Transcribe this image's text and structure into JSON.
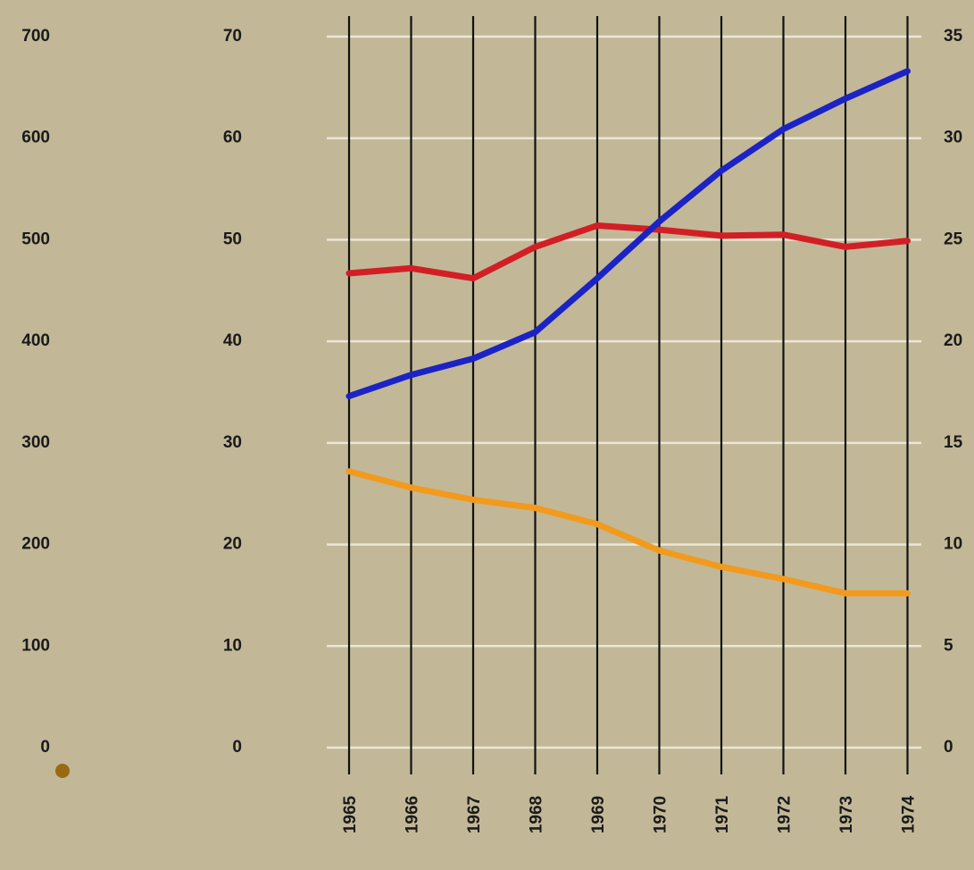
{
  "chart_data": {
    "type": "line",
    "title": "",
    "x": [
      "1965",
      "1966",
      "1967",
      "1968",
      "1969",
      "1970",
      "1971",
      "1972",
      "1973",
      "1974"
    ],
    "axes": {
      "outer_left": {
        "ticks": [
          "0",
          "100",
          "200",
          "300",
          "400",
          "500",
          "600",
          "700"
        ],
        "range": [
          0,
          700
        ]
      },
      "inner_left": {
        "ticks": [
          "0",
          "10",
          "20",
          "30",
          "40",
          "50",
          "60",
          "70"
        ],
        "range": [
          0,
          70
        ]
      },
      "right": {
        "ticks": [
          "0",
          "5",
          "10",
          "15",
          "20",
          "25",
          "30",
          "35"
        ],
        "range": [
          0,
          35
        ]
      }
    },
    "grid": true,
    "series": [
      {
        "color": "#d21f26",
        "axis": "inner_left",
        "values": [
          46.7,
          47.2,
          46.2,
          49.3,
          51.4,
          51.0,
          50.4,
          50.5,
          49.3,
          49.9
        ]
      },
      {
        "color": "#1c23c4",
        "axis": "inner_left",
        "values": [
          34.6,
          36.7,
          38.3,
          40.9,
          46.2,
          51.8,
          56.8,
          60.9,
          63.9,
          66.6
        ]
      },
      {
        "color": "#f29a1e",
        "axis": "right",
        "values": [
          13.6,
          12.8,
          12.2,
          11.8,
          11.0,
          9.7,
          8.9,
          8.3,
          7.6,
          7.6
        ]
      }
    ]
  },
  "colors": {
    "background": "#c2b897",
    "gridline": "#ece6d6",
    "year_line": "#111111",
    "dot": "#9a6a12"
  }
}
